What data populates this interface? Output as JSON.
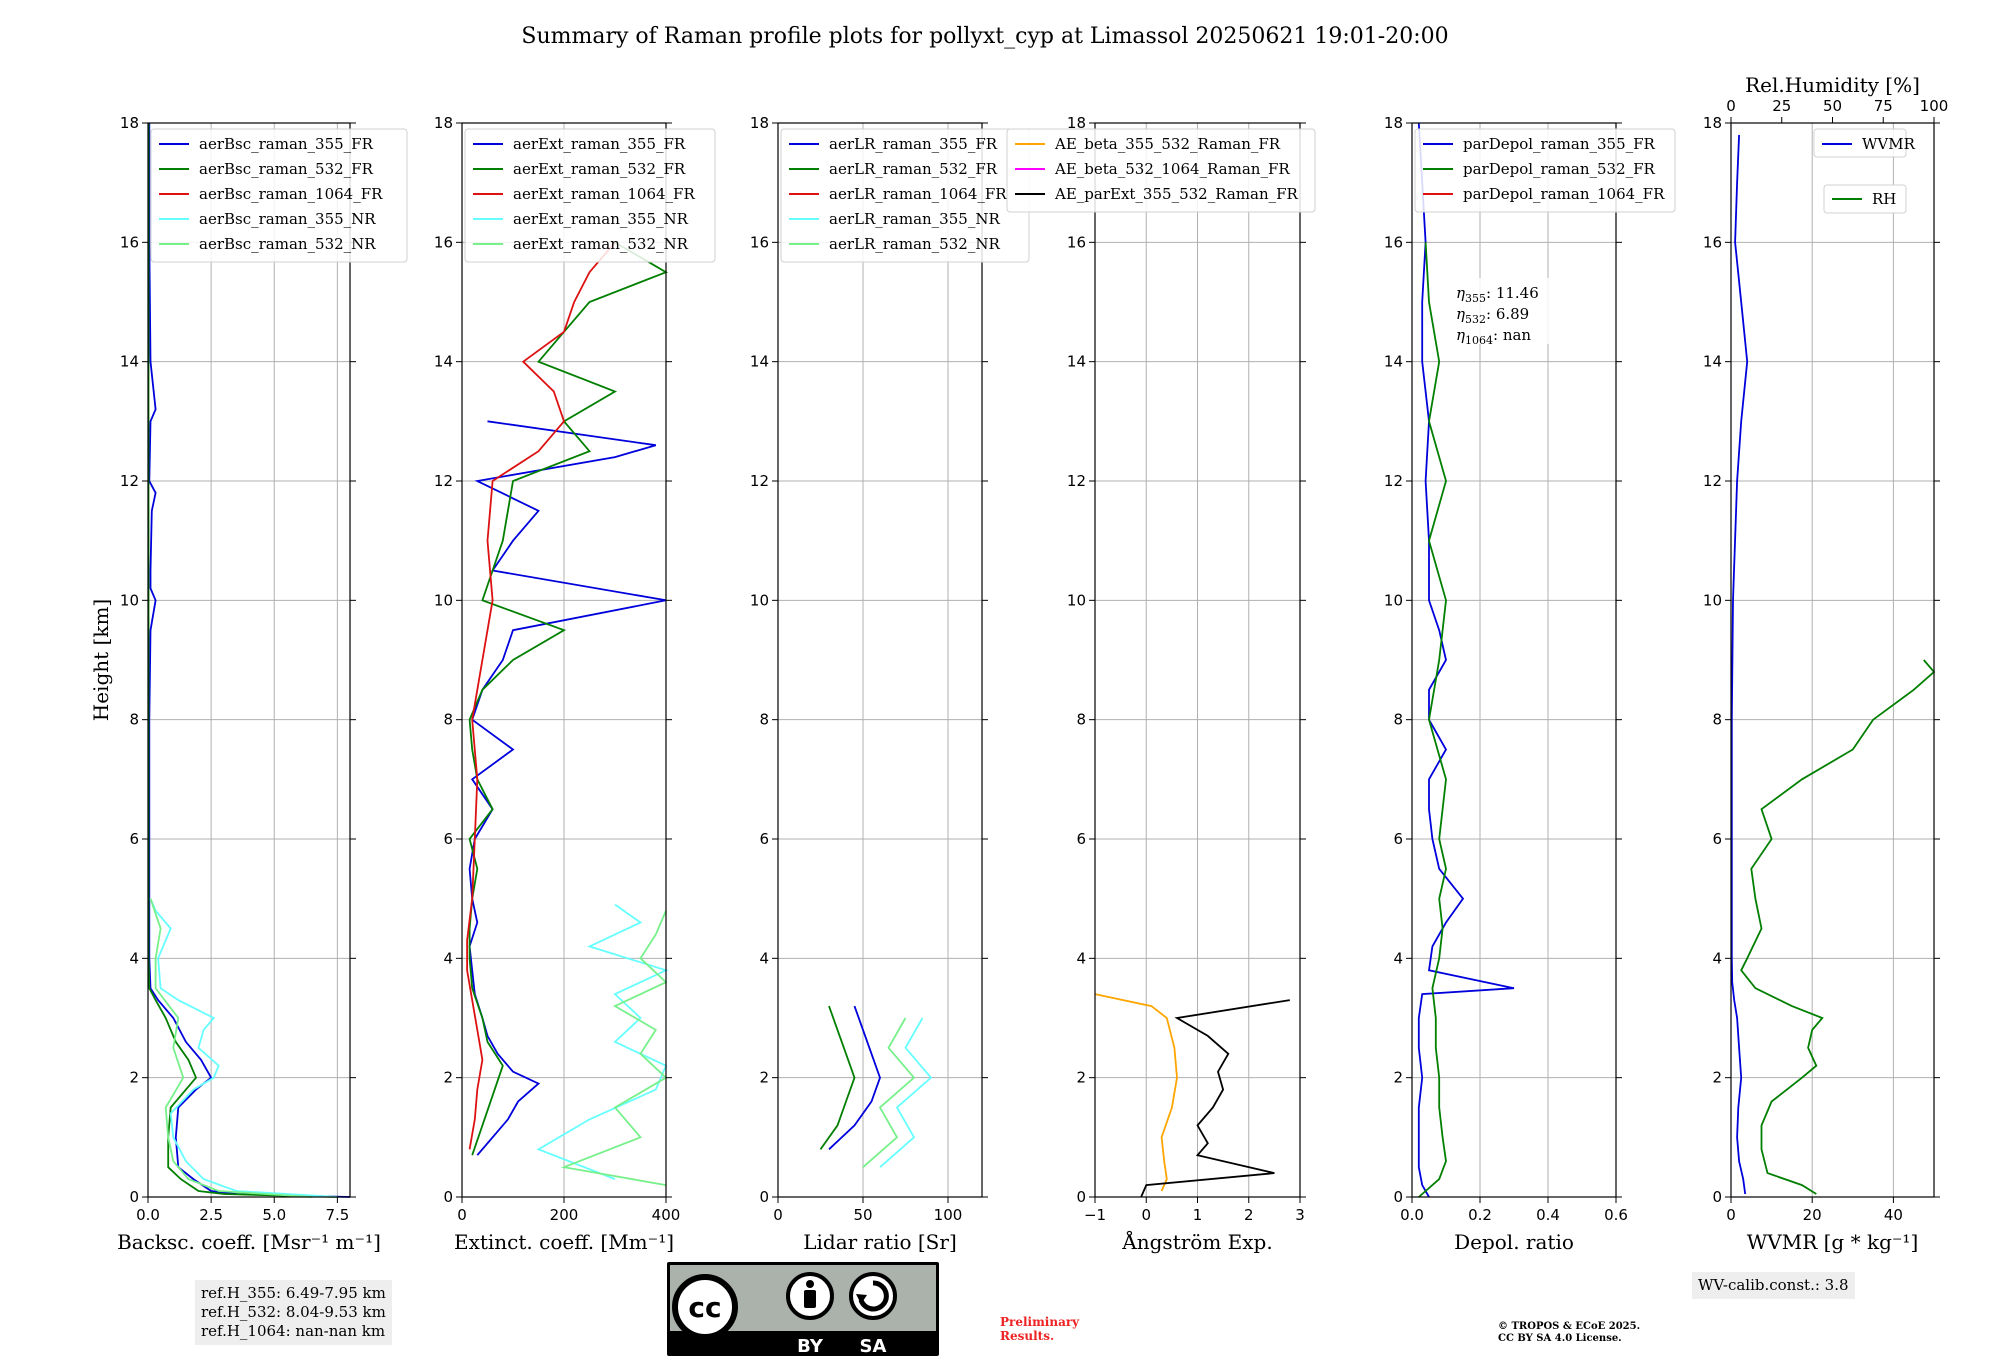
{
  "title": "Summary of Raman profile plots for pollyxt_cyp at Limassol 20250621 19:01-20:00",
  "colors": {
    "blue": "#0000dd",
    "green": "#007f00",
    "red": "#dd1111",
    "cyan": "#66ffff",
    "lightgreen": "#77f08a",
    "orange": "#ffa500",
    "magenta": "#ff00ff",
    "black": "#000000",
    "grid": "#b0b0b0"
  },
  "chart_data": [
    {
      "type": "line",
      "id": "bsc",
      "xlabel": "Backsc. coeff. [Msr⁻¹ m⁻¹]",
      "ylabel": "Height [km]",
      "xlim": [
        0,
        8
      ],
      "ylim": [
        0,
        18
      ],
      "xticks": [
        0,
        2.5,
        5,
        7.5
      ],
      "xtick_labels": [
        "0.0",
        "2.5",
        "5.0",
        "7.5"
      ],
      "yticks": [
        0,
        2,
        4,
        6,
        8,
        10,
        12,
        14,
        16,
        18
      ],
      "grid": true,
      "legend_position": "top-left",
      "series": [
        {
          "name": "aerBsc_raman_355_FR",
          "color": "blue",
          "h": [
            0,
            0.05,
            0.1,
            0.3,
            0.5,
            1.0,
            1.5,
            1.8,
            2.0,
            2.3,
            2.6,
            3.0,
            3.3,
            3.5,
            4,
            6,
            8,
            9.5,
            10.0,
            10.2,
            10.5,
            11.5,
            11.8,
            12,
            13,
            13.2,
            14,
            16,
            18
          ],
          "x": [
            8.0,
            3.5,
            2.5,
            1.8,
            1.2,
            1.1,
            1.2,
            1.9,
            2.5,
            2.1,
            1.5,
            1.0,
            0.4,
            0.1,
            0.05,
            0.05,
            0.05,
            0.1,
            0.3,
            0.1,
            0.1,
            0.15,
            0.3,
            0.05,
            0.1,
            0.3,
            0.1,
            0.05,
            0.05
          ]
        },
        {
          "name": "aerBsc_raman_532_FR",
          "color": "green",
          "h": [
            0,
            0.05,
            0.1,
            0.3,
            0.5,
            1.0,
            1.5,
            1.8,
            2.0,
            2.3,
            2.6,
            3.0,
            3.3,
            3.5,
            4,
            6,
            8,
            10,
            12,
            14,
            16,
            18
          ],
          "x": [
            7.5,
            3.0,
            2.0,
            1.3,
            0.8,
            0.8,
            0.9,
            1.5,
            1.9,
            1.6,
            1.1,
            0.7,
            0.3,
            0.05,
            0.02,
            0.02,
            0.02,
            0.02,
            0.02,
            0.02,
            0.02,
            0.02
          ]
        },
        {
          "name": "aerBsc_raman_1064_FR",
          "color": "red",
          "h": [],
          "x": []
        },
        {
          "name": "aerBsc_raman_355_NR",
          "color": "cyan",
          "h": [
            0,
            0.1,
            0.3,
            0.6,
            1.0,
            1.4,
            1.8,
            2.0,
            2.2,
            2.5,
            2.8,
            3.0,
            3.3,
            3.5,
            4.0,
            4.5,
            4.8,
            5.0
          ],
          "x": [
            7.5,
            3.5,
            2.2,
            1.5,
            1.0,
            0.9,
            1.8,
            2.6,
            2.8,
            2.0,
            2.2,
            2.6,
            1.2,
            0.5,
            0.4,
            0.9,
            0.3,
            0.1
          ]
        },
        {
          "name": "aerBsc_raman_532_NR",
          "color": "lightgreen",
          "h": [
            0,
            0.1,
            0.3,
            0.6,
            1.0,
            1.5,
            2.0,
            2.5,
            3.0,
            3.5,
            4.0,
            4.5,
            5.0
          ],
          "x": [
            6.5,
            2.8,
            1.6,
            1.0,
            0.8,
            0.7,
            1.4,
            1.0,
            1.2,
            0.3,
            0.3,
            0.5,
            0.1
          ]
        }
      ],
      "annotation": [
        "ref.H_355: 6.49-7.95 km",
        "ref.H_532: 8.04-9.53 km",
        "ref.H_1064: nan-nan km"
      ]
    },
    {
      "type": "line",
      "id": "ext",
      "xlabel": "Extinct. coeff. [Mm⁻¹]",
      "xlim": [
        0,
        400
      ],
      "ylim": [
        0,
        18
      ],
      "xticks": [
        0,
        200,
        400
      ],
      "xtick_labels": [
        "0",
        "200",
        "400"
      ],
      "yticks": [
        0,
        2,
        4,
        6,
        8,
        10,
        12,
        14,
        16,
        18
      ],
      "grid": true,
      "legend_position": "top-left",
      "series": [
        {
          "name": "aerExt_raman_355_FR",
          "color": "blue",
          "h": [
            0.7,
            1.0,
            1.3,
            1.6,
            1.9,
            2.1,
            2.4,
            2.7,
            3.0,
            3.4,
            3.8,
            4.2,
            4.6,
            5.0,
            5.5,
            6.0,
            6.5,
            7.0,
            7.5,
            8.0,
            8.5,
            9.0,
            9.5,
            10.0,
            10.5,
            11.0,
            11.5,
            12.0,
            12.4,
            12.6,
            13.0
          ],
          "x": [
            30,
            60,
            90,
            110,
            150,
            100,
            70,
            50,
            40,
            25,
            20,
            15,
            30,
            20,
            15,
            25,
            60,
            20,
            100,
            20,
            40,
            80,
            100,
            400,
            60,
            100,
            150,
            30,
            300,
            380,
            50
          ]
        },
        {
          "name": "aerExt_raman_532_FR",
          "color": "green",
          "h": [
            0.7,
            1.2,
            1.7,
            2.2,
            2.6,
            3.0,
            3.5,
            4.0,
            4.5,
            5.0,
            5.5,
            6.0,
            6.5,
            7.0,
            7.5,
            8.0,
            8.5,
            9.0,
            9.5,
            10.0,
            11.0,
            12.0,
            12.5,
            13.0,
            13.5,
            14.0,
            14.5,
            15.0,
            15.5,
            16.0
          ],
          "x": [
            20,
            40,
            60,
            80,
            50,
            40,
            20,
            15,
            15,
            20,
            30,
            15,
            60,
            30,
            20,
            15,
            40,
            100,
            200,
            40,
            80,
            100,
            250,
            200,
            300,
            150,
            200,
            250,
            400,
            300
          ]
        },
        {
          "name": "aerExt_raman_1064_FR",
          "color": "red",
          "h": [
            0.8,
            1.3,
            1.8,
            2.3,
            2.8,
            3.3,
            3.8,
            4.3,
            5.0,
            6.0,
            7.0,
            8.0,
            9.0,
            10.0,
            11.0,
            12.0,
            12.5,
            13.0,
            13.5,
            14.0,
            14.5,
            15.0,
            15.5,
            16.0
          ],
          "x": [
            15,
            25,
            30,
            40,
            30,
            20,
            10,
            10,
            20,
            25,
            30,
            20,
            40,
            60,
            50,
            60,
            150,
            200,
            180,
            120,
            200,
            220,
            250,
            300
          ]
        },
        {
          "name": "aerExt_raman_355_NR",
          "color": "cyan",
          "h": [
            0.3,
            0.8,
            1.3,
            1.8,
            2.2,
            2.6,
            3.0,
            3.4,
            3.8,
            4.2,
            4.6,
            4.9
          ],
          "x": [
            300,
            150,
            250,
            380,
            400,
            300,
            350,
            300,
            400,
            250,
            350,
            300
          ]
        },
        {
          "name": "aerExt_raman_532_NR",
          "color": "lightgreen",
          "h": [
            0.2,
            0.5,
            1.0,
            1.5,
            2.0,
            2.4,
            2.8,
            3.2,
            3.6,
            4.0,
            4.4,
            4.8
          ],
          "x": [
            400,
            200,
            350,
            300,
            400,
            350,
            380,
            300,
            400,
            350,
            380,
            400
          ]
        }
      ]
    },
    {
      "type": "line",
      "id": "lr",
      "xlabel": "Lidar ratio [Sr]",
      "xlim": [
        0,
        120
      ],
      "ylim": [
        0,
        18
      ],
      "xticks": [
        0,
        50,
        100
      ],
      "xtick_labels": [
        "0",
        "50",
        "100"
      ],
      "yticks": [
        0,
        2,
        4,
        6,
        8,
        10,
        12,
        14,
        16,
        18
      ],
      "grid": true,
      "legend_position": "top-left",
      "series": [
        {
          "name": "aerLR_raman_355_FR",
          "color": "blue",
          "h": [
            0.8,
            1.2,
            1.6,
            2.0,
            2.4,
            2.8,
            3.2
          ],
          "x": [
            30,
            45,
            55,
            60,
            55,
            50,
            45
          ]
        },
        {
          "name": "aerLR_raman_532_FR",
          "color": "green",
          "h": [
            0.8,
            1.2,
            1.6,
            2.0,
            2.4,
            2.8,
            3.2
          ],
          "x": [
            25,
            35,
            40,
            45,
            40,
            35,
            30
          ]
        },
        {
          "name": "aerLR_raman_1064_FR",
          "color": "red",
          "h": [],
          "x": []
        },
        {
          "name": "aerLR_raman_355_NR",
          "color": "cyan",
          "h": [
            0.5,
            1.0,
            1.5,
            2.0,
            2.5,
            3.0
          ],
          "x": [
            60,
            80,
            70,
            90,
            75,
            85
          ]
        },
        {
          "name": "aerLR_raman_532_NR",
          "color": "lightgreen",
          "h": [
            0.5,
            1.0,
            1.5,
            2.0,
            2.5,
            3.0
          ],
          "x": [
            50,
            70,
            60,
            80,
            65,
            75
          ]
        }
      ]
    },
    {
      "type": "line",
      "id": "ae",
      "xlabel": "Ångström Exp.",
      "xlim": [
        -1,
        3
      ],
      "ylim": [
        0,
        18
      ],
      "xticks": [
        -1,
        0,
        1,
        2,
        3
      ],
      "xtick_labels": [
        "−1",
        "0",
        "1",
        "2",
        "3"
      ],
      "yticks": [
        0,
        2,
        4,
        6,
        8,
        10,
        12,
        14,
        16,
        18
      ],
      "grid": true,
      "legend_position": "top",
      "series": [
        {
          "name": "AE_beta_355_532_Raman_FR",
          "color": "orange",
          "h": [
            0.1,
            0.3,
            0.6,
            1.0,
            1.5,
            2.0,
            2.5,
            3.0,
            3.2,
            3.4
          ],
          "x": [
            0.3,
            0.4,
            0.35,
            0.3,
            0.5,
            0.6,
            0.55,
            0.4,
            0.1,
            -1.0
          ]
        },
        {
          "name": "AE_beta_532_1064_Raman_FR",
          "color": "magenta",
          "h": [],
          "x": []
        },
        {
          "name": "AE_parExt_355_532_Raman_FR",
          "color": "black",
          "h": [
            0.0,
            0.2,
            0.4,
            0.7,
            0.9,
            1.2,
            1.5,
            1.8,
            2.1,
            2.4,
            2.7,
            3.0,
            3.3
          ],
          "x": [
            -0.1,
            0.0,
            2.5,
            1.0,
            1.2,
            1.0,
            1.3,
            1.5,
            1.4,
            1.6,
            1.2,
            0.6,
            2.8
          ]
        }
      ]
    },
    {
      "type": "line",
      "id": "depol",
      "xlabel": "Depol. ratio",
      "xlim": [
        0,
        0.6
      ],
      "ylim": [
        0,
        18
      ],
      "xticks": [
        0,
        0.2,
        0.4,
        0.6
      ],
      "xtick_labels": [
        "0.0",
        "0.2",
        "0.4",
        "0.6"
      ],
      "yticks": [
        0,
        2,
        4,
        6,
        8,
        10,
        12,
        14,
        16,
        18
      ],
      "grid": true,
      "legend_position": "top-left",
      "series": [
        {
          "name": "parDepol_raman_355_FR",
          "color": "blue",
          "h": [
            0,
            0.2,
            0.5,
            1.0,
            1.5,
            2.0,
            2.5,
            3.0,
            3.4,
            3.5,
            3.8,
            4.2,
            4.6,
            5.0,
            5.5,
            6.0,
            6.5,
            7.0,
            7.5,
            8.0,
            8.5,
            9.0,
            9.5,
            10.0,
            11.0,
            12.0,
            13.0,
            14.0,
            15.0,
            16.0,
            17.0,
            18.0
          ],
          "x": [
            0.05,
            0.03,
            0.02,
            0.02,
            0.02,
            0.03,
            0.02,
            0.02,
            0.03,
            0.3,
            0.05,
            0.06,
            0.1,
            0.15,
            0.08,
            0.06,
            0.05,
            0.05,
            0.1,
            0.05,
            0.05,
            0.1,
            0.08,
            0.05,
            0.05,
            0.04,
            0.05,
            0.03,
            0.03,
            0.04,
            0.03,
            0.02
          ]
        },
        {
          "name": "parDepol_raman_532_FR",
          "color": "green",
          "h": [
            0,
            0.3,
            0.6,
            1.0,
            1.5,
            2.0,
            2.5,
            3.0,
            3.5,
            4.0,
            4.5,
            5.0,
            5.5,
            6.0,
            7.0,
            8.0,
            9.0,
            10.0,
            11.0,
            12.0,
            13.0,
            14.0,
            15.0,
            16.0
          ],
          "x": [
            0.02,
            0.08,
            0.1,
            0.09,
            0.08,
            0.08,
            0.07,
            0.07,
            0.06,
            0.08,
            0.09,
            0.08,
            0.1,
            0.08,
            0.1,
            0.05,
            0.08,
            0.1,
            0.05,
            0.1,
            0.05,
            0.08,
            0.05,
            0.04
          ]
        },
        {
          "name": "parDepol_raman_1064_FR",
          "color": "red",
          "h": [],
          "x": []
        }
      ],
      "eta_labels": [
        {
          "sub": "355",
          "value": ": 11.46"
        },
        {
          "sub": "532",
          "value": ": 6.89"
        },
        {
          "sub": "1064",
          "value": ": nan"
        }
      ]
    },
    {
      "type": "line",
      "id": "wv",
      "xlabel": "WVMR [g * kg⁻¹]",
      "top_xlabel": "Rel.Humidity [%]",
      "xlim": [
        0,
        50
      ],
      "top_xlim": [
        0,
        100
      ],
      "ylim": [
        0,
        18
      ],
      "xticks": [
        0,
        20,
        40
      ],
      "xtick_labels": [
        "0",
        "20",
        "40"
      ],
      "top_xticks": [
        0,
        25,
        50,
        75,
        100
      ],
      "top_xtick_labels": [
        "0",
        "25",
        "50",
        "75",
        "100"
      ],
      "yticks": [
        0,
        2,
        4,
        6,
        8,
        10,
        12,
        14,
        16,
        18
      ],
      "grid": true,
      "legend_position": "top-right",
      "series": [
        {
          "name": "WVMR",
          "color": "blue",
          "h": [
            0.05,
            0.3,
            0.6,
            1.0,
            1.5,
            2.0,
            2.5,
            3.0,
            3.3,
            3.6,
            4.0,
            5.0,
            6.0,
            7.0,
            8.0,
            10.0,
            12.0,
            13.0,
            14.0,
            15.0,
            16.0,
            17.0,
            17.8
          ],
          "x": [
            3.5,
            3.0,
            2.0,
            1.5,
            1.8,
            2.5,
            2.0,
            1.5,
            0.8,
            0.3,
            0.2,
            0.2,
            0.2,
            0.2,
            0.2,
            0.5,
            1.5,
            2.5,
            4.0,
            2.5,
            1.0,
            1.5,
            2.0
          ]
        },
        {
          "name": "RH",
          "color": "green",
          "h": [
            0.05,
            0.2,
            0.4,
            0.8,
            1.2,
            1.6,
            2.0,
            2.2,
            2.5,
            2.8,
            3.0,
            3.2,
            3.5,
            3.8,
            4.0,
            4.5,
            5.0,
            5.5,
            6.0,
            6.5,
            7.0,
            7.5,
            8.0,
            8.5,
            8.8,
            9.0
          ],
          "rh": [
            42,
            35,
            18,
            15,
            15,
            20,
            35,
            42,
            38,
            40,
            45,
            30,
            12,
            5,
            8,
            15,
            12,
            10,
            20,
            15,
            35,
            60,
            70,
            90,
            100,
            95
          ]
        }
      ],
      "annotation": "WV-calib.const.: 3.8"
    }
  ],
  "license": {
    "cc": "cc",
    "by": "BY",
    "sa": "SA"
  },
  "preliminary": [
    "Preliminary",
    "Results."
  ],
  "copyright": [
    "© TROPOS & ECoE 2025.",
    "CC BY SA 4.0 License."
  ]
}
